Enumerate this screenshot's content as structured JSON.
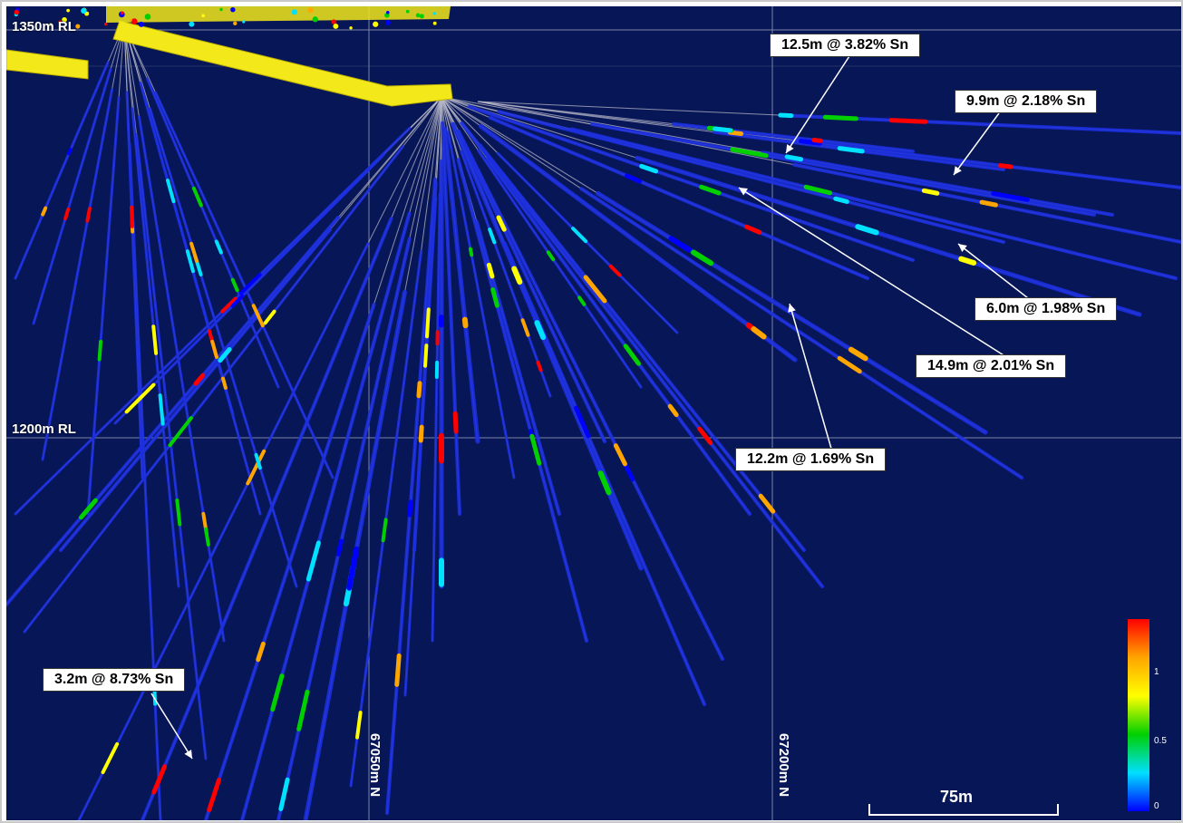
{
  "levels": {
    "top": "1350m RL",
    "mid": "1200m RL"
  },
  "northings": {
    "a": "67050m N",
    "b": "67200m N"
  },
  "intercepts": [
    {
      "label": "12.5m @ 3.82% Sn"
    },
    {
      "label": "9.9m @ 2.18% Sn"
    },
    {
      "label": "6.0m @ 1.98% Sn"
    },
    {
      "label": "14.9m @ 2.01% Sn"
    },
    {
      "label": "12.2m @ 1.69% Sn"
    },
    {
      "label": "3.2m @ 8.73% Sn"
    }
  ],
  "scale_bar": {
    "label": "75m"
  },
  "color_scale": {
    "ticks": [
      "1",
      "0.5",
      "0"
    ],
    "colors": [
      "#ff0000",
      "#ffa500",
      "#ffff00",
      "#00d000",
      "#00e0ff",
      "#0000ff"
    ]
  },
  "colors": {
    "background": "#071656",
    "drillhole": "#1c2fe0",
    "trace": "#b8b8c8",
    "development": "#f2e81a",
    "grid": "#7d84a8"
  }
}
